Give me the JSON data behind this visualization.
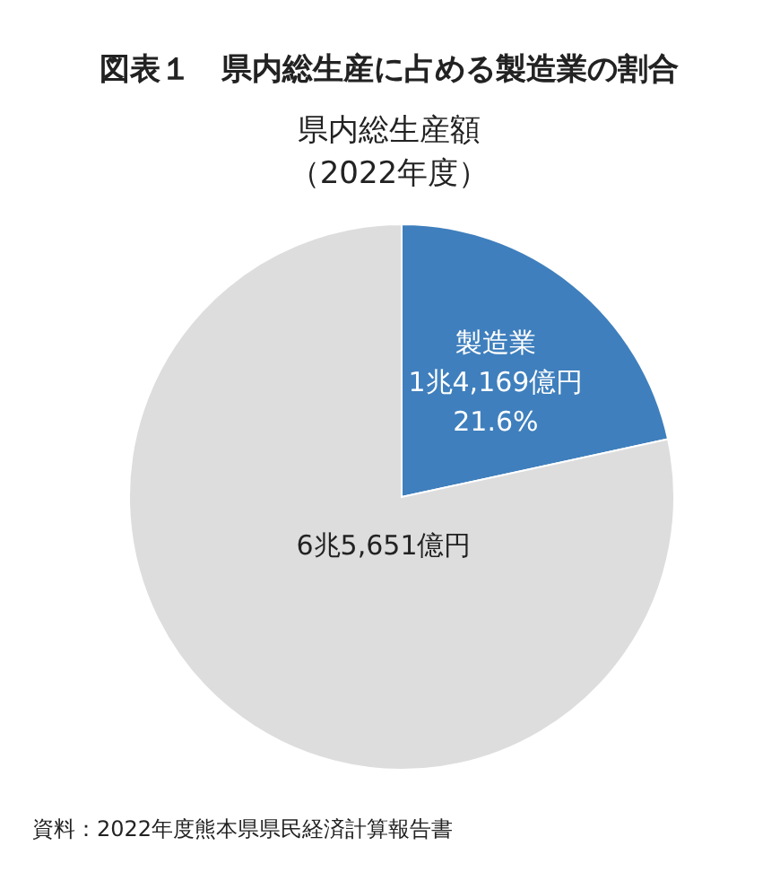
{
  "chart_data": {
    "type": "pie",
    "title": "図表１　県内総生産に占める製造業の割合",
    "subtitle": "県内総生産額（2022年度）",
    "categories": [
      "製造業",
      null
    ],
    "values": [
      21.6,
      78.4
    ],
    "colors": [
      "#3f7fbd",
      "#dddddd"
    ],
    "value_labels": [
      "1兆4,169億円\n21.6%",
      null
    ],
    "annotations": [
      "6兆5,651億円",
      "資料：2022年度熊本県県民経済計算報告書"
    ]
  }
}
